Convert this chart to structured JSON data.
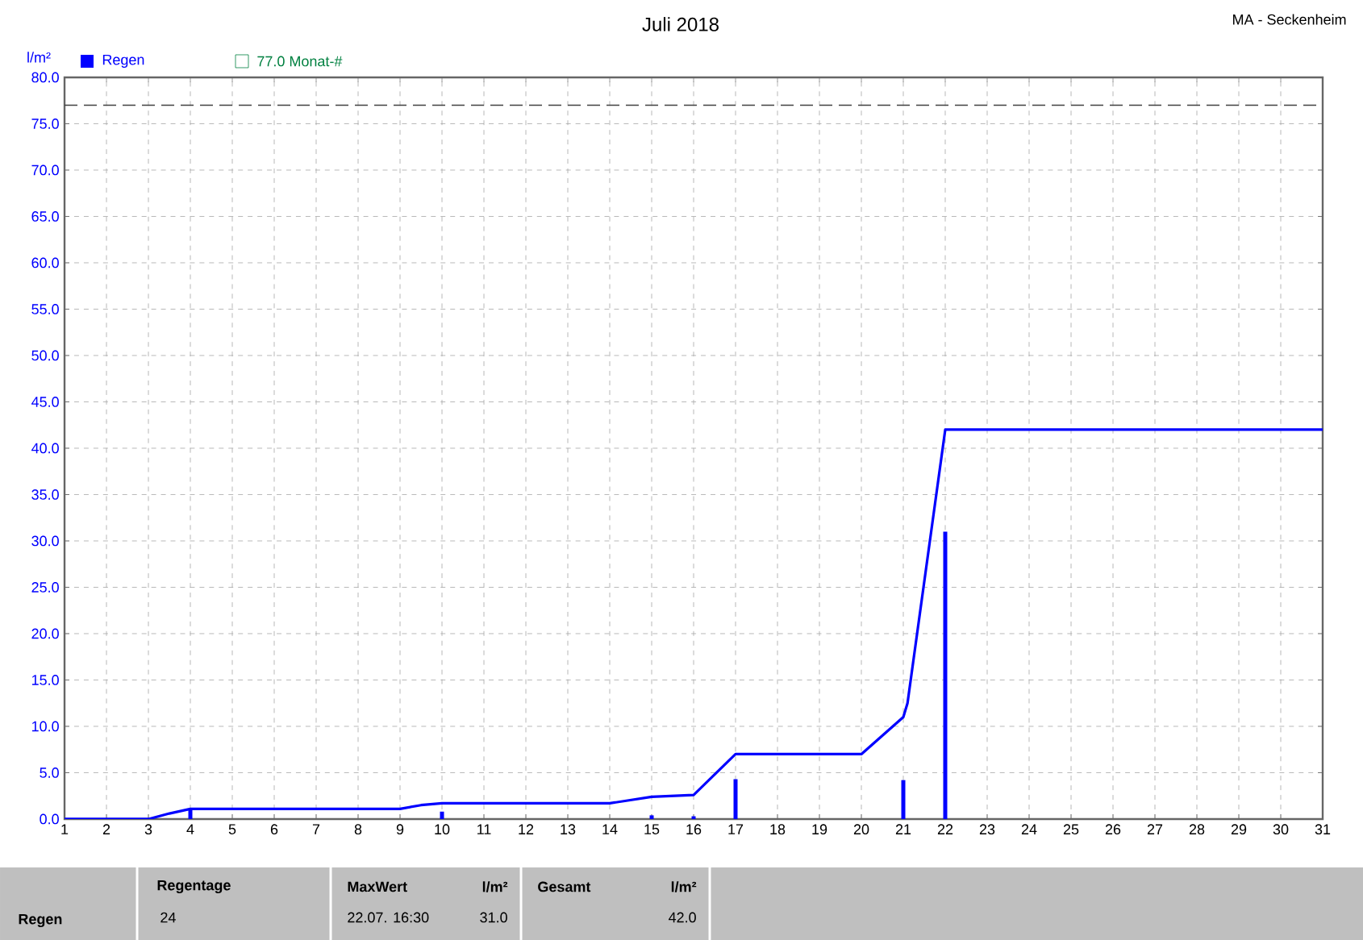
{
  "chart_data": {
    "type": "bar",
    "title": "Juli 2018",
    "subtitle": "MA - Seckenheim",
    "ylabel": "l/m²",
    "xlim": [
      1,
      31
    ],
    "xticks": [
      1,
      2,
      3,
      4,
      5,
      6,
      7,
      8,
      9,
      10,
      11,
      12,
      13,
      14,
      15,
      16,
      17,
      18,
      19,
      20,
      21,
      22,
      23,
      24,
      25,
      26,
      27,
      28,
      29,
      30,
      31
    ],
    "ylim": [
      0,
      80
    ],
    "yticks": [
      {
        "value": 0,
        "label": "0.0"
      },
      {
        "value": 5,
        "label": "5.0"
      },
      {
        "value": 10,
        "label": "10.0"
      },
      {
        "value": 15,
        "label": "15.0"
      },
      {
        "value": 20,
        "label": "20.0"
      },
      {
        "value": 25,
        "label": "25.0"
      },
      {
        "value": 30,
        "label": "30.0"
      },
      {
        "value": 35,
        "label": "35.0"
      },
      {
        "value": 40,
        "label": "40.0"
      },
      {
        "value": 45,
        "label": "45.0"
      },
      {
        "value": 50,
        "label": "50.0"
      },
      {
        "value": 55,
        "label": "55.0"
      },
      {
        "value": 60,
        "label": "60.0"
      },
      {
        "value": 65,
        "label": "65.0"
      },
      {
        "value": 70,
        "label": "70.0"
      },
      {
        "value": 75,
        "label": "75.0"
      },
      {
        "value": 80,
        "label": "80.0"
      }
    ],
    "grid": true,
    "legend": "top left",
    "series": [
      {
        "name": "Regen",
        "color": "#0000ff",
        "x": [
          4,
          10,
          15,
          16,
          17,
          21,
          22
        ],
        "values": [
          1.0,
          0.8,
          0.4,
          0.3,
          4.3,
          4.2,
          31.0
        ]
      },
      {
        "type": "line",
        "color": "#0000ff",
        "x": [
          1,
          3,
          3.5,
          4,
          9,
          9.5,
          10,
          14,
          15,
          16,
          17,
          20,
          21,
          21.1,
          22,
          31
        ],
        "values": [
          0,
          0,
          0.6,
          1.1,
          1.1,
          1.5,
          1.7,
          1.7,
          2.4,
          2.6,
          7.0,
          7.0,
          11.0,
          12.5,
          42.0,
          42.0
        ]
      }
    ],
    "ref_lines": [
      {
        "axis": "y",
        "value": 77,
        "label": "77.0 Monat-#",
        "color": "#404040",
        "line_style": "dashed"
      }
    ],
    "annotations": [
      "Regen",
      "Regentage",
      "24",
      "MaxWert",
      "22.07.  16:30",
      "l/m²",
      "31.0",
      "Gesamt",
      "l/m²",
      "42.0"
    ]
  }
}
